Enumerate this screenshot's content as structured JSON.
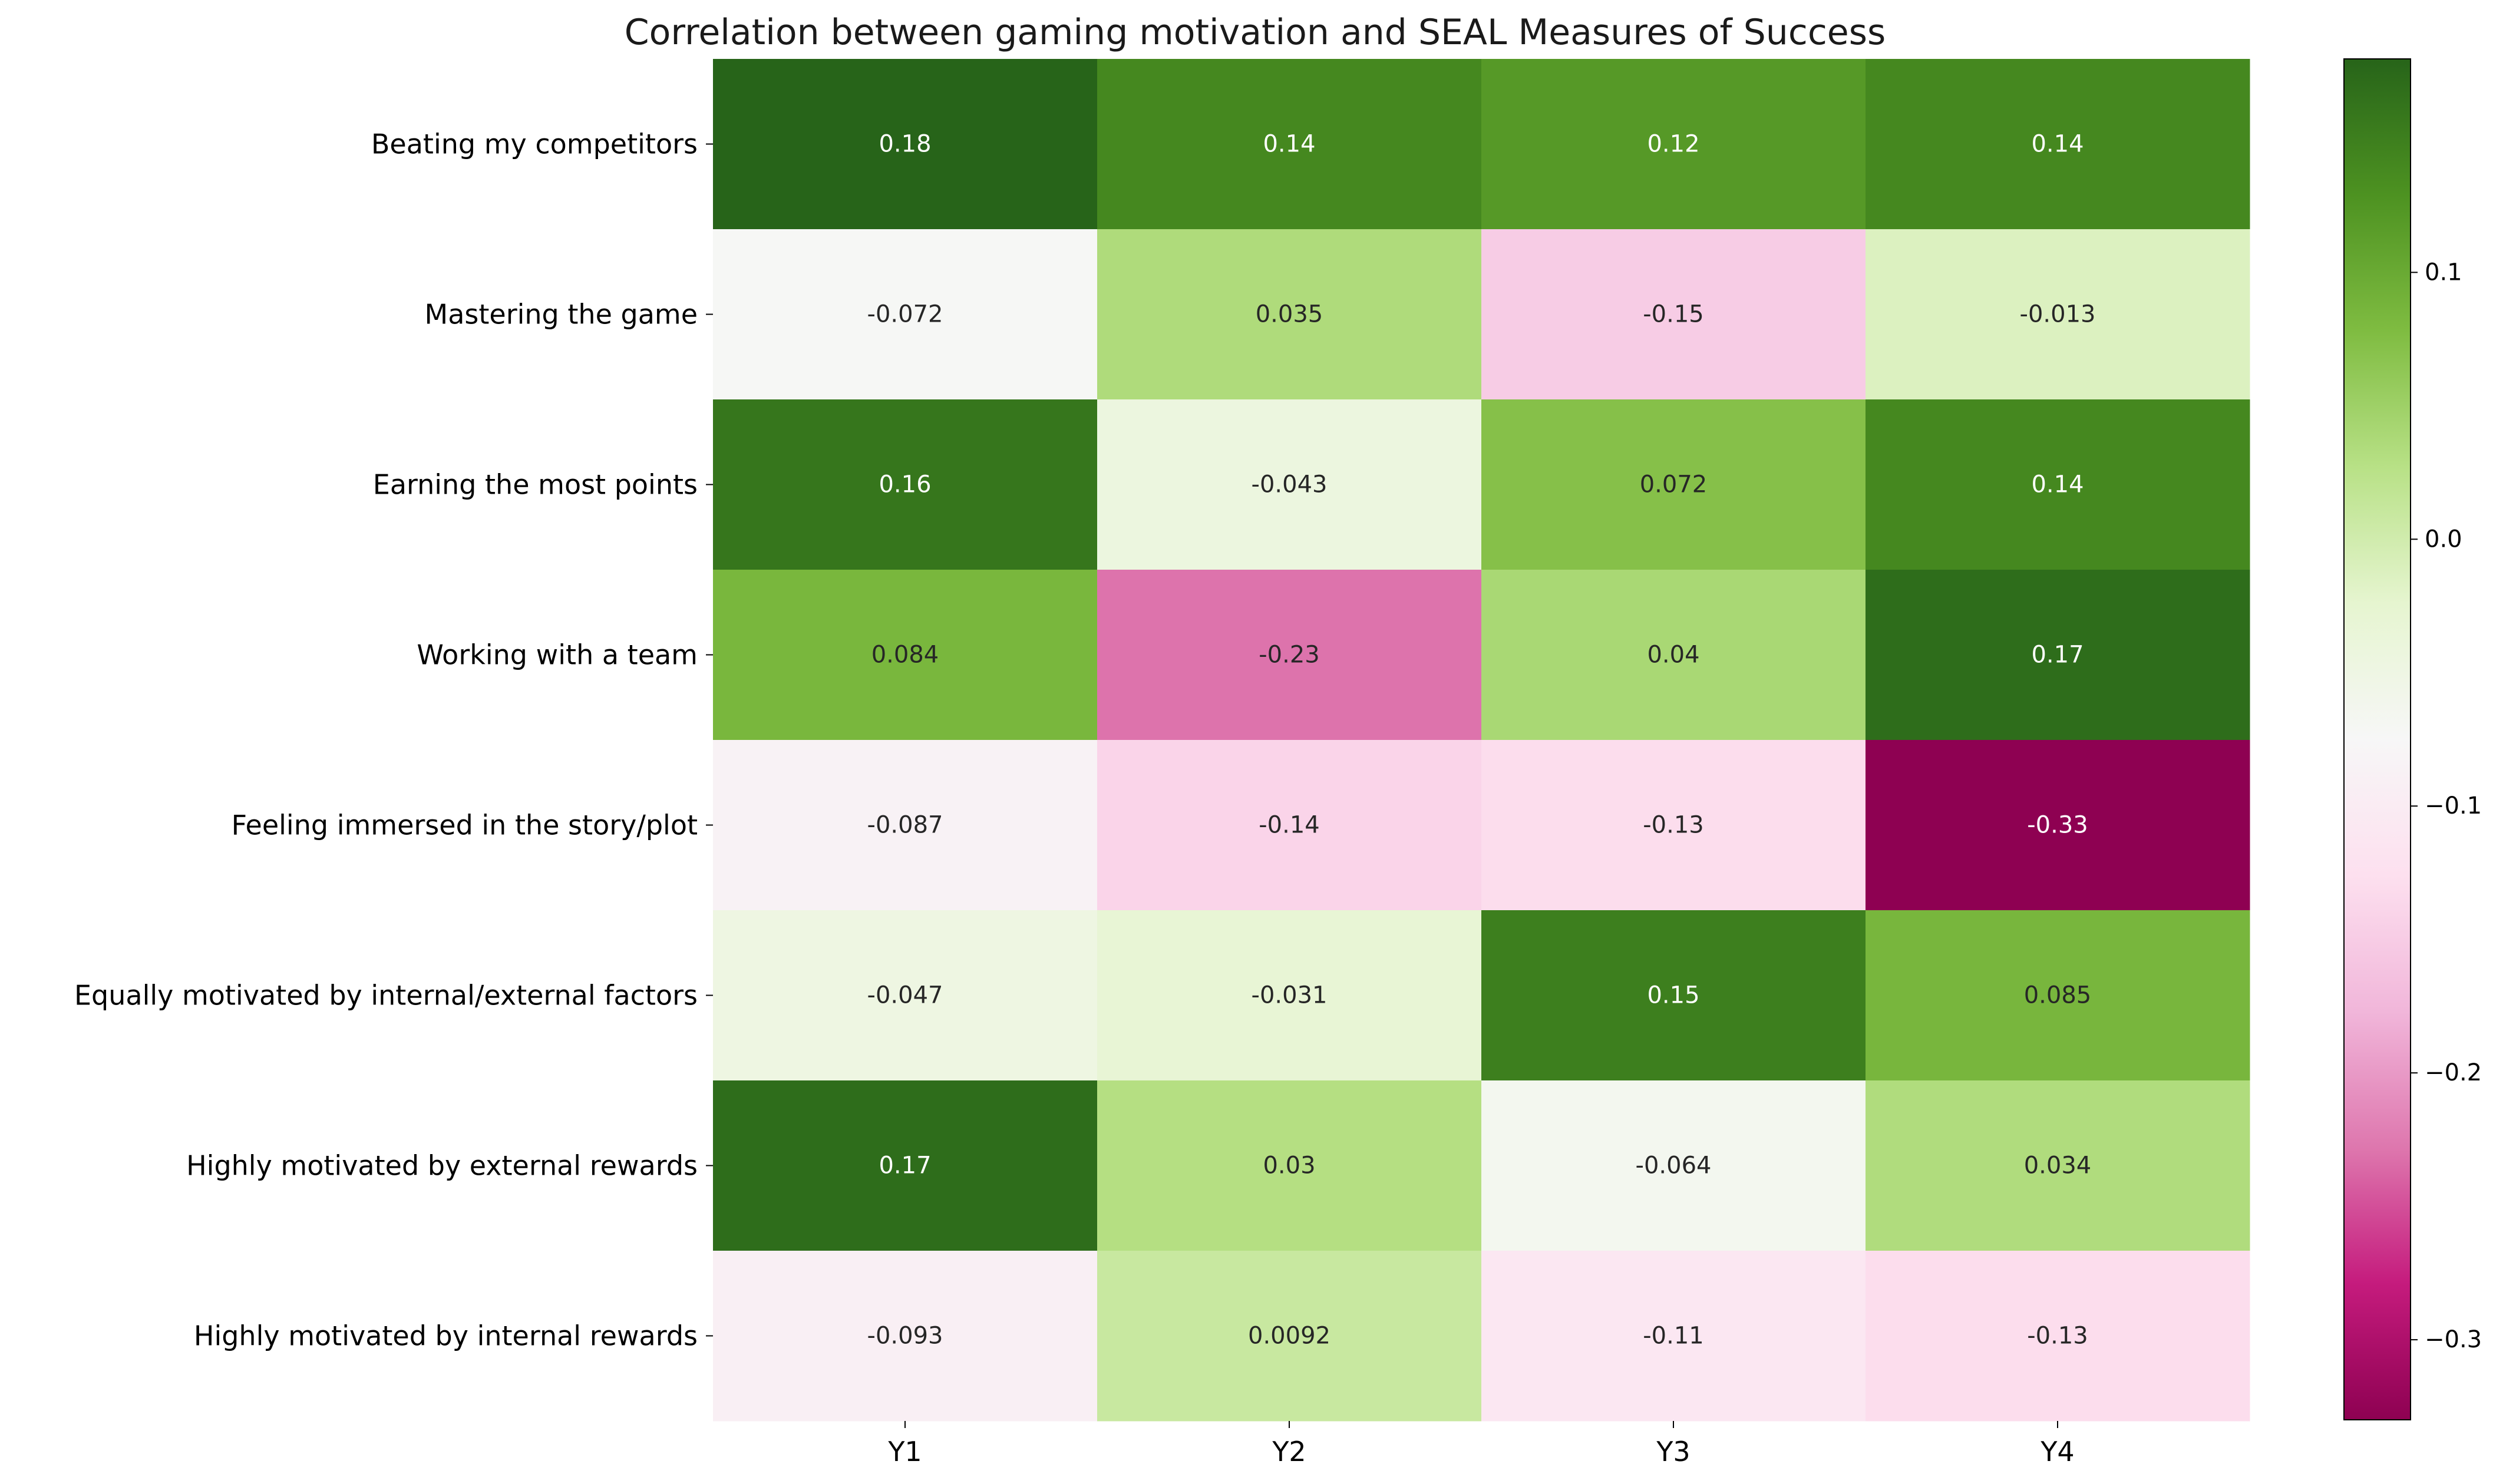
{
  "chart_data": {
    "type": "heatmap",
    "title": "Correlation between gaming motivation and SEAL Measures of Success",
    "xlabel": "",
    "ylabel": "",
    "x_categories": [
      "Y1",
      "Y2",
      "Y3",
      "Y4"
    ],
    "y_categories": [
      "Beating my competitors",
      "Mastering the game",
      "Earning the most points",
      "Working with a team",
      "Feeling immersed in the story/plot",
      "Equally motivated by internal/external factors",
      "Highly motivated by external rewards",
      "Highly motivated by internal rewards"
    ],
    "values": [
      [
        0.18,
        0.14,
        0.12,
        0.14
      ],
      [
        -0.072,
        0.035,
        -0.15,
        -0.013
      ],
      [
        0.16,
        -0.043,
        0.072,
        0.14
      ],
      [
        0.084,
        -0.23,
        0.04,
        0.17
      ],
      [
        -0.087,
        -0.14,
        -0.13,
        -0.33
      ],
      [
        -0.047,
        -0.031,
        0.15,
        0.085
      ],
      [
        0.17,
        0.03,
        -0.064,
        0.034
      ],
      [
        -0.093,
        0.0092,
        -0.11,
        -0.13
      ]
    ],
    "cell_labels": [
      [
        "0.18",
        "0.14",
        "0.12",
        "0.14"
      ],
      [
        "-0.072",
        "0.035",
        "-0.15",
        "-0.013"
      ],
      [
        "0.16",
        "-0.043",
        "0.072",
        "0.14"
      ],
      [
        "0.084",
        "-0.23",
        "0.04",
        "0.17"
      ],
      [
        "-0.087",
        "-0.14",
        "-0.13",
        "-0.33"
      ],
      [
        "-0.047",
        "-0.031",
        "0.15",
        "0.085"
      ],
      [
        "0.17",
        "0.03",
        "-0.064",
        "0.034"
      ],
      [
        "-0.093",
        "0.0092",
        "-0.11",
        "-0.13"
      ]
    ],
    "colormap": "PiYG",
    "vmin": -0.33,
    "vmax": 0.18,
    "colorbar": {
      "ticks": [
        0.1,
        0.0,
        -0.1,
        -0.2,
        -0.3
      ],
      "tick_labels": [
        "0.1",
        "0.0",
        "−0.1",
        "−0.2",
        "−0.3"
      ],
      "position": "right"
    },
    "grid": false
  }
}
